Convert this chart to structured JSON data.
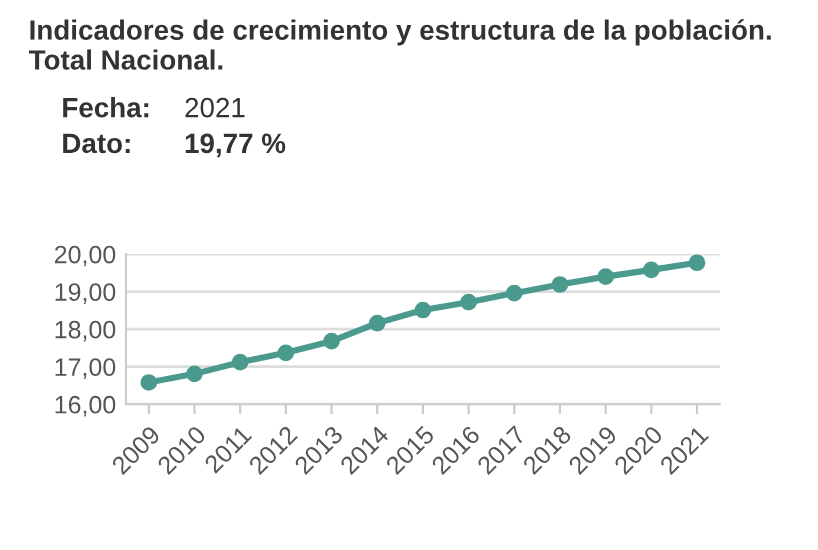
{
  "chart_data": {
    "type": "line",
    "title": "Indicadores de crecimiento y estructura de la población. Total Nacional.",
    "annotations": [
      "Fecha: 2021",
      "Dato: 19,77 %"
    ],
    "categories": [
      "2009",
      "2010",
      "2011",
      "2012",
      "2013",
      "2014",
      "2015",
      "2016",
      "2017",
      "2018",
      "2019",
      "2020",
      "2021"
    ],
    "series": [
      {
        "color": "#4a9a8e",
        "values": [
          16.58,
          16.81,
          17.12,
          17.37,
          17.68,
          18.16,
          18.51,
          18.72,
          18.96,
          19.19,
          19.4,
          19.58,
          19.77
        ]
      }
    ],
    "ylim": [
      16,
      20
    ],
    "yticks": [
      {
        "value": 16,
        "label": "16,00"
      },
      {
        "value": 17,
        "label": "17,00"
      },
      {
        "value": 18,
        "label": "18,00"
      },
      {
        "value": 19,
        "label": "19,00"
      },
      {
        "value": 20,
        "label": "20,00"
      }
    ],
    "grid": "y",
    "marker": "circle",
    "line_style": "solid"
  }
}
